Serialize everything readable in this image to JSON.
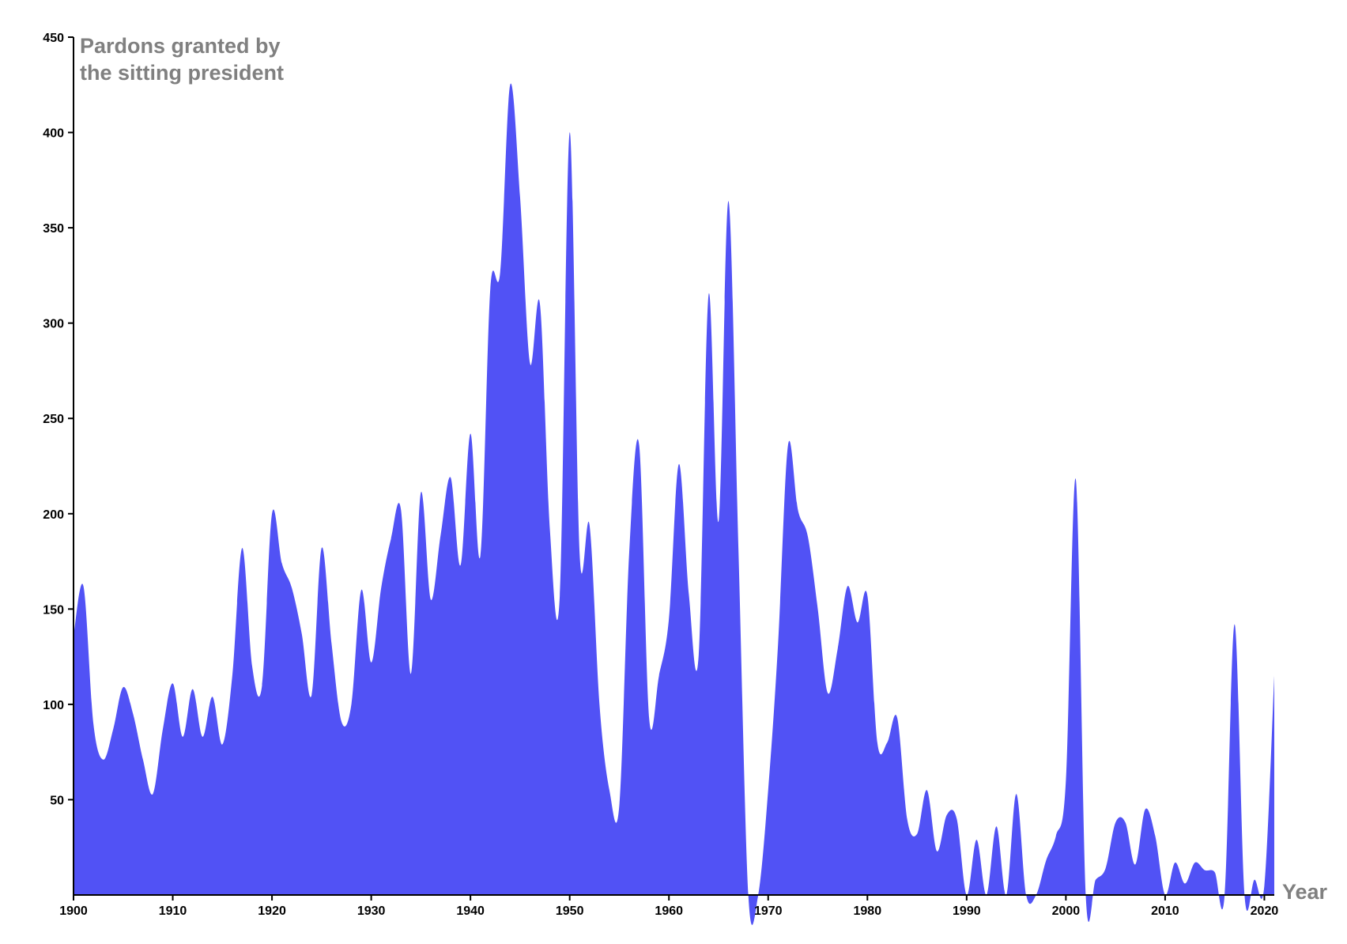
{
  "chart_data": {
    "type": "area",
    "title": [
      "Pardons granted by",
      "the sitting president"
    ],
    "xlabel": "Year",
    "ylabel": "",
    "xlim": [
      1900,
      2021
    ],
    "ylim": [
      0,
      450
    ],
    "grid": false,
    "fill_color": "#5152f5",
    "x_ticks": [
      1900,
      1910,
      1920,
      1930,
      1940,
      1950,
      1960,
      1970,
      1980,
      1990,
      2000,
      2010,
      2020
    ],
    "y_ticks": [
      50,
      100,
      150,
      200,
      250,
      300,
      350,
      400,
      450
    ],
    "x": [
      1900,
      1901,
      1902,
      1903,
      1904,
      1905,
      1906,
      1907,
      1908,
      1909,
      1910,
      1911,
      1912,
      1913,
      1914,
      1915,
      1916,
      1917,
      1918,
      1919,
      1920,
      1921,
      1922,
      1923,
      1924,
      1925,
      1926,
      1927,
      1928,
      1929,
      1930,
      1931,
      1932,
      1933,
      1934,
      1935,
      1936,
      1937,
      1938,
      1939,
      1940,
      1941,
      1942,
      1943,
      1944,
      1945,
      1946,
      1947,
      1948,
      1949,
      1950,
      1951,
      1952,
      1953,
      1954,
      1955,
      1956,
      1957,
      1958,
      1959,
      1960,
      1961,
      1962,
      1963,
      1964,
      1965,
      1966,
      1967,
      1968,
      1969,
      1970,
      1971,
      1972,
      1973,
      1974,
      1975,
      1976,
      1977,
      1978,
      1979,
      1980,
      1981,
      1982,
      1983,
      1984,
      1985,
      1986,
      1987,
      1988,
      1989,
      1990,
      1991,
      1992,
      1993,
      1994,
      1995,
      1996,
      1997,
      1998,
      1999,
      2000,
      2001,
      2002,
      2003,
      2004,
      2005,
      2006,
      2007,
      2008,
      2009,
      2010,
      2011,
      2012,
      2013,
      2014,
      2015,
      2016,
      2017,
      2018,
      2019,
      2020,
      2021
    ],
    "values": [
      136,
      162,
      90,
      71,
      87,
      109,
      95,
      71,
      53,
      87,
      111,
      83,
      108,
      83,
      104,
      79,
      115,
      182,
      120,
      110,
      200,
      174,
      161,
      137,
      105,
      182,
      132,
      91,
      100,
      160,
      122,
      161,
      187,
      202,
      116,
      211,
      155,
      189,
      219,
      173,
      242,
      178,
      318,
      327,
      425,
      366,
      279,
      310,
      192,
      157,
      400,
      179,
      194,
      100,
      55,
      47,
      180,
      236,
      93,
      115,
      145,
      226,
      158,
      126,
      315,
      196,
      364,
      182,
      0,
      0,
      55,
      132,
      236,
      202,
      188,
      150,
      106,
      129,
      162,
      143,
      157,
      80,
      80,
      93,
      40,
      32,
      55,
      23,
      42,
      40,
      0,
      29,
      0,
      36,
      0,
      53,
      0,
      0,
      18,
      31,
      60,
      218,
      0,
      8,
      14,
      38,
      38,
      16,
      45,
      31,
      0,
      17,
      6,
      17,
      13,
      12,
      0,
      142,
      0,
      8,
      5,
      115
    ]
  }
}
